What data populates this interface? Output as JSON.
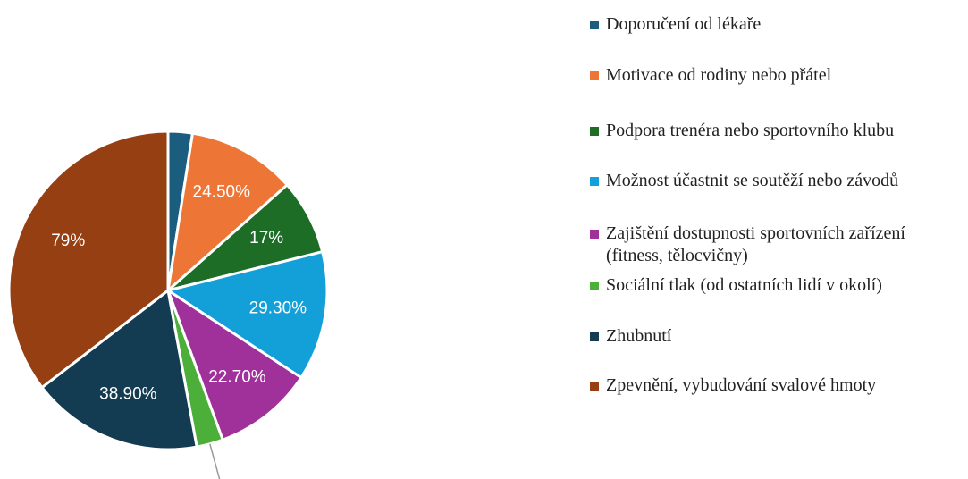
{
  "chart_data": {
    "type": "pie",
    "categories": [
      "Doporučení od lékaře",
      "Motivace od rodiny nebo přátel",
      "Podpora trenéra nebo sportovního klubu",
      "Možnost účastnit se soutěží nebo závodů",
      "Zajištění dostupnosti sportovních zařízení (fitness, tělocvičny)",
      "Sociální tlak (od ostatních lidí v okolí)",
      "Zhubnutí",
      "Zpevnění, vybudování svalové hmoty"
    ],
    "values": [
      5.5,
      24.5,
      17,
      29.3,
      22.7,
      6,
      38.9,
      79
    ],
    "value_labels": [
      null,
      "24.50%",
      "17%",
      "29.30%",
      "22.70%",
      null,
      "38.90%",
      "79%"
    ],
    "colors": [
      "#1b5d7e",
      "#ed7636",
      "#1e6d27",
      "#139fd8",
      "#a0309a",
      "#4caf3a",
      "#133b52",
      "#963f12"
    ],
    "legend": "right"
  }
}
